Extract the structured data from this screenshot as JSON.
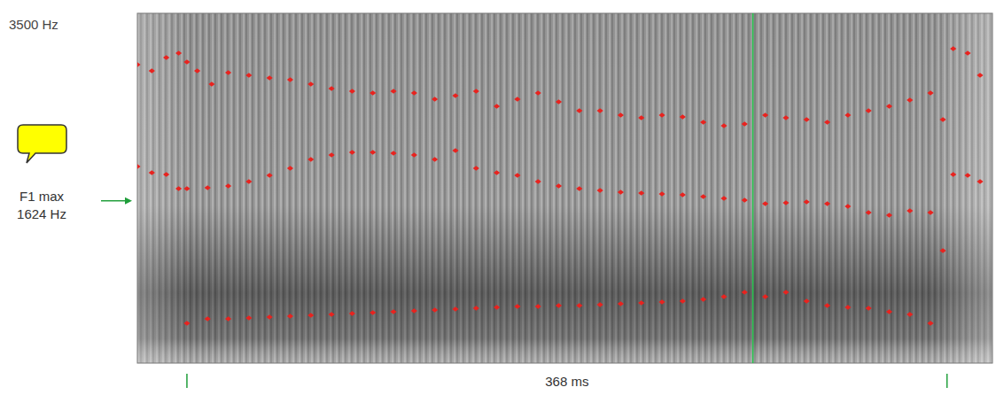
{
  "chart_data": {
    "type": "scatter",
    "xlim": [
      -24,
      390
    ],
    "ylim": [
      0,
      3500
    ],
    "yticks": [
      {
        "value": 3500,
        "label": "3500 Hz"
      }
    ],
    "tick_labels": "y",
    "series": [
      {
        "color": "#e8231f",
        "marker": "diamond",
        "x": [
          0,
          10,
          20,
          30,
          40,
          50,
          60,
          70,
          80,
          90,
          100,
          110,
          120,
          130,
          140,
          150,
          160,
          170,
          180,
          190,
          200,
          210,
          220,
          230,
          240,
          250,
          260,
          270,
          280,
          290,
          300,
          310,
          320,
          330,
          340,
          350,
          360
        ],
        "values": [
          399,
          443,
          443,
          452,
          461,
          470,
          478,
          487,
          496,
          505,
          514,
          523,
          532,
          540,
          549,
          558,
          567,
          567,
          576,
          576,
          585,
          594,
          603,
          611,
          620,
          638,
          665,
          709,
          665,
          709,
          620,
          576,
          558,
          549,
          514,
          487,
          399
        ]
      },
      {
        "color": "#e8231f",
        "marker": "diamond",
        "x": [
          -24,
          -17,
          -10,
          -4,
          0,
          10,
          20,
          30,
          40,
          50,
          60,
          70,
          80,
          90,
          100,
          110,
          120,
          130,
          140,
          150,
          160,
          170,
          180,
          190,
          200,
          210,
          220,
          230,
          240,
          250,
          260,
          270,
          280,
          290,
          300,
          310,
          320,
          330,
          340,
          350,
          360,
          366,
          371,
          378,
          384
        ],
        "values": [
          1967,
          1905,
          1887,
          1746,
          1746,
          1754,
          1772,
          1817,
          1879,
          1949,
          2038,
          2082,
          2109,
          2109,
          2100,
          2082,
          2038,
          2127,
          1949,
          1905,
          1879,
          1817,
          1772,
          1746,
          1728,
          1710,
          1701,
          1692,
          1684,
          1666,
          1648,
          1630,
          1595,
          1604,
          1613,
          1595,
          1568,
          1506,
          1480,
          1524,
          1506,
          1125,
          1887,
          1879,
          1817
        ]
      },
      {
        "color": "#e8231f",
        "marker": "diamond",
        "x": [
          -24,
          -17,
          -10,
          -4,
          0,
          5,
          12,
          20,
          30,
          40,
          50,
          60,
          70,
          80,
          90,
          100,
          110,
          120,
          130,
          140,
          150,
          160,
          170,
          180,
          190,
          200,
          210,
          220,
          230,
          240,
          250,
          260,
          270,
          280,
          290,
          300,
          310,
          320,
          330,
          340,
          350,
          360,
          366,
          371,
          378,
          384
        ],
        "values": [
          2986,
          2924,
          3057,
          3101,
          3013,
          2924,
          2791,
          2906,
          2880,
          2853,
          2836,
          2791,
          2747,
          2720,
          2703,
          2720,
          2703,
          2641,
          2676,
          2720,
          2570,
          2641,
          2703,
          2614,
          2525,
          2525,
          2481,
          2454,
          2481,
          2463,
          2410,
          2375,
          2392,
          2481,
          2454,
          2437,
          2410,
          2481,
          2525,
          2570,
          2632,
          2703,
          2437,
          3146,
          3101,
          2880
        ]
      }
    ],
    "annotations": [
      {
        "text": "F1 max",
        "value": 1624,
        "label": "1624 Hz",
        "color": "#1f9e3a"
      }
    ],
    "span": {
      "x": [
        0,
        368
      ],
      "label": "368 ms",
      "color": "#1f9e3a"
    },
    "cursor": {
      "x": 274,
      "color": "#22c24a"
    }
  }
}
